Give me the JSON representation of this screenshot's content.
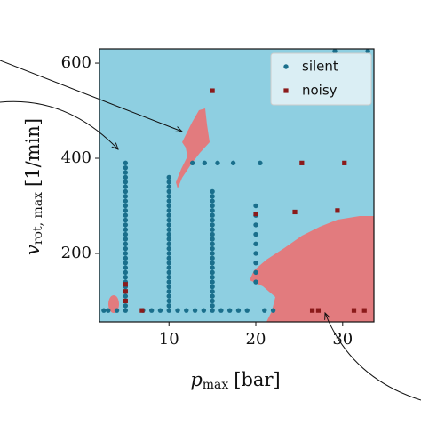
{
  "chart_data": {
    "type": "scatter",
    "x_label": {
      "symbol": "p",
      "subscript": "max",
      "unit": "[bar]"
    },
    "y_label": {
      "symbol": "v",
      "subscript": "rot, max",
      "unit": "[1/min]"
    },
    "xlim": [
      2,
      33.6
    ],
    "ylim": [
      56,
      630
    ],
    "xticks": [
      10,
      20,
      30
    ],
    "yticks": [
      200,
      400,
      600
    ],
    "legend": "upper right",
    "series": [
      {
        "name": "silent",
        "color": "#1a6f8c",
        "marker": "circle",
        "x": [
          5,
          5,
          5,
          5,
          5,
          5,
          5,
          5,
          5,
          5,
          5,
          5,
          5,
          5,
          5,
          5,
          5,
          5,
          5,
          5,
          5,
          5,
          5,
          5,
          5,
          5,
          5,
          5,
          5,
          5,
          5,
          5,
          10,
          10,
          10,
          10,
          10,
          10,
          10,
          10,
          10,
          10,
          10,
          10,
          10,
          10,
          10,
          10,
          10,
          10,
          10,
          10,
          10,
          10,
          10,
          10,
          10,
          10,
          10,
          10,
          10,
          15,
          15,
          15,
          15,
          15,
          15,
          15,
          15,
          15,
          15,
          15,
          15,
          15,
          15,
          15,
          15,
          15,
          15,
          15,
          15,
          15,
          15,
          15,
          15,
          15,
          15,
          20,
          20,
          20,
          20,
          20,
          20,
          20,
          20,
          20,
          12.7,
          14.1,
          15.6,
          17.4,
          20.5,
          2.5,
          3,
          4,
          7,
          8,
          9,
          11,
          12,
          13,
          14,
          16,
          17,
          18,
          19,
          21,
          22,
          29.1,
          32.9
        ],
        "y": [
          390,
          380,
          370,
          360,
          350,
          340,
          330,
          320,
          310,
          300,
          290,
          280,
          270,
          260,
          250,
          240,
          230,
          220,
          210,
          200,
          190,
          180,
          170,
          160,
          150,
          140,
          130,
          120,
          110,
          100,
          90,
          80,
          360,
          350,
          340,
          330,
          320,
          310,
          300,
          290,
          280,
          270,
          260,
          250,
          240,
          230,
          220,
          210,
          200,
          190,
          180,
          170,
          160,
          150,
          140,
          130,
          120,
          110,
          100,
          90,
          80,
          330,
          320,
          310,
          300,
          290,
          280,
          270,
          260,
          250,
          240,
          230,
          220,
          210,
          200,
          190,
          180,
          170,
          160,
          150,
          140,
          130,
          120,
          110,
          100,
          90,
          80,
          300,
          280,
          260,
          240,
          220,
          200,
          180,
          160,
          140,
          390,
          390,
          390,
          390,
          390,
          80,
          80,
          80,
          80,
          80,
          80,
          80,
          80,
          80,
          80,
          80,
          80,
          80,
          80,
          80,
          80,
          625,
          625
        ]
      },
      {
        "name": "noisy",
        "color": "#8b1a1a",
        "marker": "square",
        "x": [
          15,
          25.3,
          30.2,
          20,
          24.5,
          29.4,
          5,
          5,
          5,
          6.9,
          26.5,
          27.2,
          31.3,
          32.5
        ],
        "y": [
          542,
          390,
          390,
          283,
          287,
          290,
          135,
          120,
          100,
          80,
          80,
          80,
          80,
          80
        ]
      }
    ]
  }
}
